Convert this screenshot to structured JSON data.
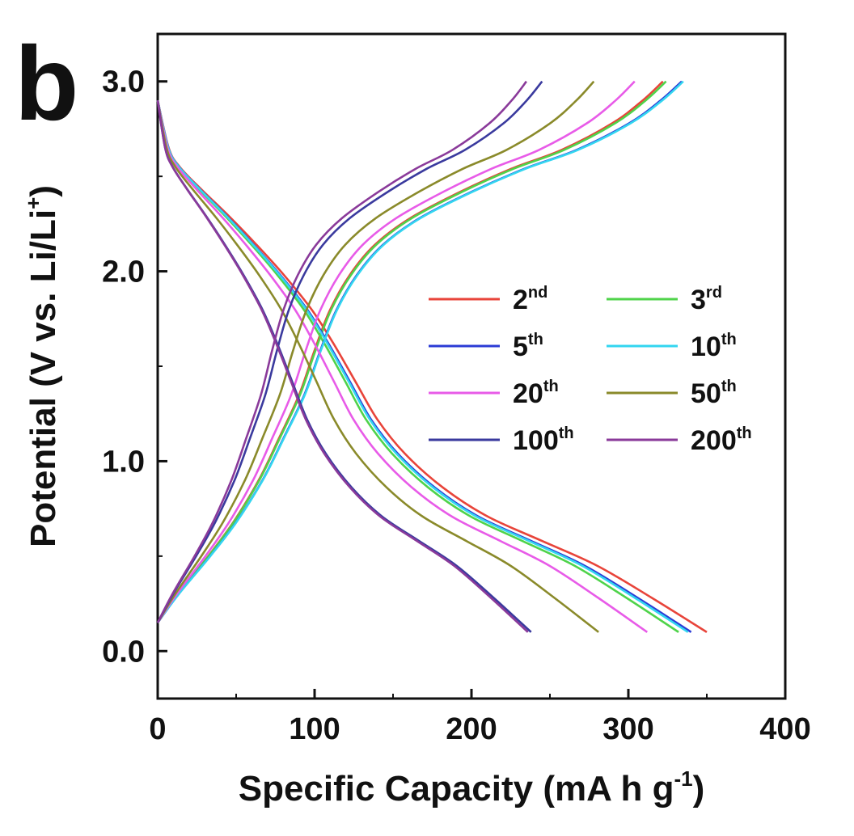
{
  "chart_data": {
    "type": "line",
    "panel_label": "b",
    "xlabel": {
      "main": "Specific Capacity (mA h g",
      "sup": "-1",
      "end": ")"
    },
    "ylabel": {
      "main": "Potential (V vs. Li/Li",
      "sup": "+",
      "end": ")"
    },
    "xlim": [
      0,
      400
    ],
    "ylim": [
      -0.25,
      3.25
    ],
    "x_ticks": [
      "0",
      "100",
      "200",
      "300",
      "400"
    ],
    "y_ticks": [
      "0.0",
      "1.0",
      "2.0",
      "3.0"
    ],
    "grid": false,
    "legend_position": "center-right",
    "discharge_shape": [
      [
        0,
        2.9
      ],
      [
        0.02,
        2.65
      ],
      [
        0.04,
        2.55
      ],
      [
        0.08,
        2.43
      ],
      [
        0.13,
        2.29
      ],
      [
        0.18,
        2.14
      ],
      [
        0.23,
        1.98
      ],
      [
        0.28,
        1.8
      ],
      [
        0.32,
        1.62
      ],
      [
        0.36,
        1.42
      ],
      [
        0.4,
        1.22
      ],
      [
        0.45,
        1.04
      ],
      [
        0.52,
        0.86
      ],
      [
        0.6,
        0.71
      ],
      [
        0.7,
        0.58
      ],
      [
        0.8,
        0.45
      ],
      [
        0.9,
        0.28
      ],
      [
        1,
        0.1
      ]
    ],
    "charge_shape": [
      [
        0,
        0.15
      ],
      [
        0.04,
        0.3
      ],
      [
        0.1,
        0.5
      ],
      [
        0.15,
        0.68
      ],
      [
        0.2,
        0.9
      ],
      [
        0.24,
        1.12
      ],
      [
        0.28,
        1.35
      ],
      [
        0.31,
        1.58
      ],
      [
        0.34,
        1.79
      ],
      [
        0.38,
        1.98
      ],
      [
        0.43,
        2.14
      ],
      [
        0.5,
        2.28
      ],
      [
        0.6,
        2.42
      ],
      [
        0.7,
        2.54
      ],
      [
        0.8,
        2.64
      ],
      [
        0.9,
        2.78
      ],
      [
        0.96,
        2.9
      ],
      [
        1,
        3.0
      ]
    ],
    "series": [
      {
        "name": "2",
        "sup": "nd",
        "color": "#e8443a",
        "discharge_capacity": 350,
        "charge_capacity": 322
      },
      {
        "name": "3",
        "sup": "rd",
        "color": "#4fd34a",
        "discharge_capacity": 332,
        "charge_capacity": 324
      },
      {
        "name": "5",
        "sup": "th",
        "color": "#2b3bd6",
        "discharge_capacity": 340,
        "charge_capacity": 334
      },
      {
        "name": "10",
        "sup": "th",
        "color": "#33d6f0",
        "discharge_capacity": 338,
        "charge_capacity": 335
      },
      {
        "name": "20",
        "sup": "th",
        "color": "#e85be8",
        "discharge_capacity": 312,
        "charge_capacity": 304
      },
      {
        "name": "50",
        "sup": "th",
        "color": "#8a8a2a",
        "discharge_capacity": 281,
        "charge_capacity": 278
      },
      {
        "name": "100",
        "sup": "th",
        "color": "#3a3a9e",
        "discharge_capacity": 238,
        "charge_capacity": 245
      },
      {
        "name": "200",
        "sup": "th",
        "color": "#8a3a9a",
        "discharge_capacity": 236,
        "charge_capacity": 235
      }
    ]
  }
}
